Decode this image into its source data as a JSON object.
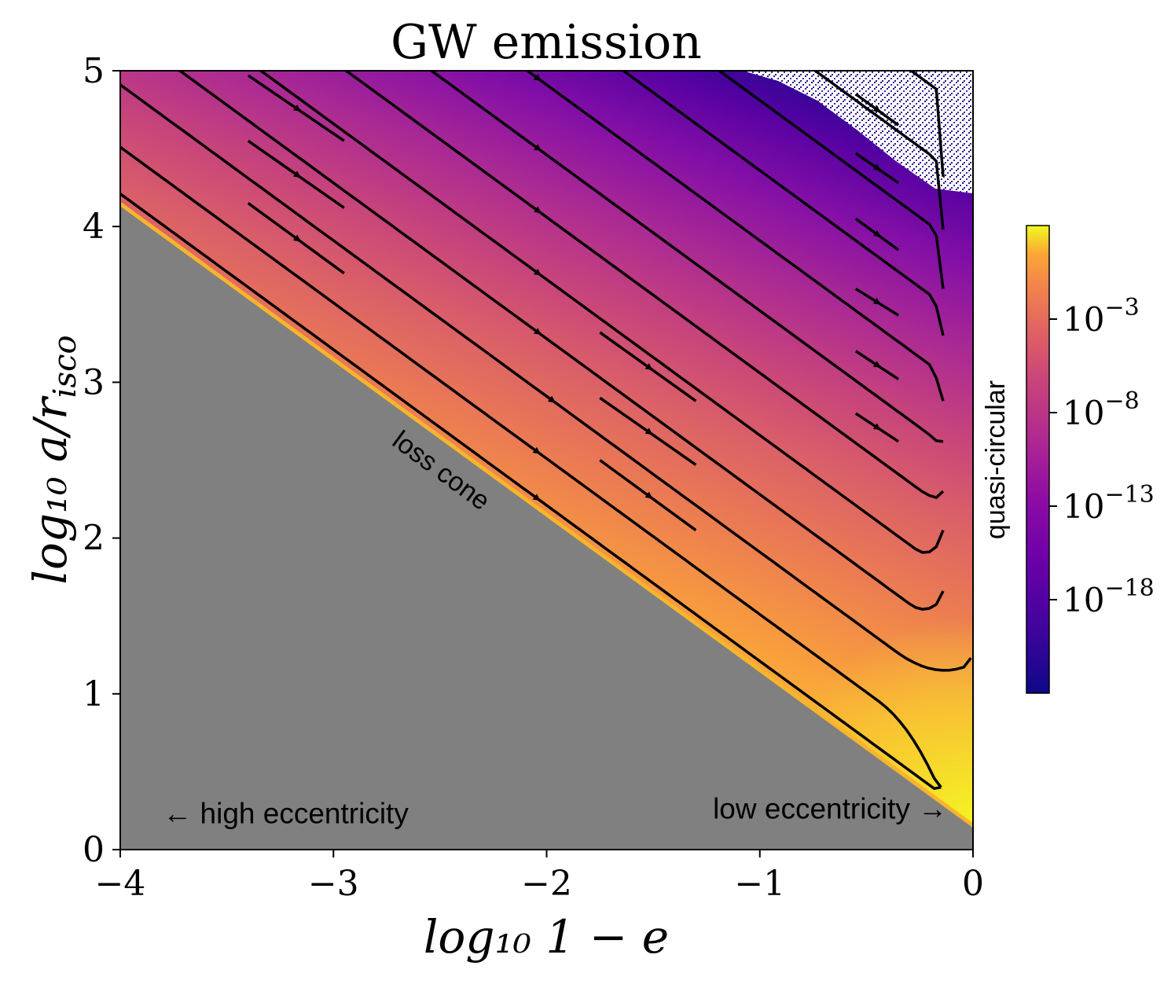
{
  "chart_data": {
    "type": "heatmap",
    "title": "GW emission",
    "xlabel": "log₁₀ 1 − e",
    "ylabel": "log₁₀ a/r",
    "ylabel_sub": "isco",
    "xlim": [
      -4,
      0
    ],
    "ylim": [
      0,
      5
    ],
    "xticks": [
      {
        "value": -4,
        "label": "−4"
      },
      {
        "value": -3,
        "label": "−3"
      },
      {
        "value": -2,
        "label": "−2"
      },
      {
        "value": -1,
        "label": "−1"
      },
      {
        "value": 0,
        "label": "0"
      }
    ],
    "yticks": [
      {
        "value": 0,
        "label": "0"
      },
      {
        "value": 1,
        "label": "1"
      },
      {
        "value": 2,
        "label": "2"
      },
      {
        "value": 3,
        "label": "3"
      },
      {
        "value": 4,
        "label": "4"
      },
      {
        "value": 5,
        "label": "5"
      }
    ],
    "colorbar": {
      "label": "quasi-circular",
      "scale": "log",
      "colormap": "plasma",
      "range_exp": [
        -23,
        2
      ],
      "ticks": [
        {
          "exp": -3,
          "label": "10",
          "sup": "−3"
        },
        {
          "exp": -8,
          "label": "10",
          "sup": "−8"
        },
        {
          "exp": -13,
          "label": "10",
          "sup": "−13"
        },
        {
          "exp": -18,
          "label": "10",
          "sup": "−18"
        }
      ]
    },
    "loss_cone": {
      "label": "loss cone",
      "boundary": [
        [
          -4,
          4.13
        ],
        [
          0,
          0.14
        ]
      ],
      "color": "#808080"
    },
    "annotations": [
      {
        "text": "← high eccentricity",
        "x": -3.8,
        "y": 0.17
      },
      {
        "text": "low eccentricity →",
        "x": -1.22,
        "y": 0.2
      }
    ],
    "flow_lines": [
      {
        "y0": 4.25,
        "x_turn": -0.6,
        "end_y": 0.4
      },
      {
        "y0": 4.55,
        "x_turn": -0.45,
        "end_y": 0.4
      },
      {
        "y0": 4.95,
        "x_turn": -0.37,
        "end_y": 1.23
      },
      {
        "y0": 5.32,
        "x_turn": -0.3,
        "end_y": 1.66
      },
      {
        "y0": 5.7,
        "x_turn": -0.27,
        "end_y": 2.05
      },
      {
        "y0": 6.1,
        "x_turn": -0.25,
        "end_y": 2.3
      },
      {
        "y0": 6.5,
        "x_turn": -0.23,
        "end_y": 2.62
      },
      {
        "y0": 6.95,
        "x_turn": -0.21,
        "end_y": 2.88
      },
      {
        "y0": 7.4,
        "x_turn": -0.2,
        "end_y": 3.3
      },
      {
        "y0": 7.85,
        "x_turn": -0.19,
        "end_y": 3.6
      },
      {
        "y0": 8.3,
        "x_turn": -0.18,
        "end_y": 3.98
      },
      {
        "y0": 8.75,
        "x_turn": -0.17,
        "end_y": 4.32
      }
    ],
    "short_segments": [
      {
        "x1": -3.4,
        "y1": 4.97,
        "x2": -2.95,
        "y2": 4.55
      },
      {
        "x1": -3.4,
        "y1": 4.55,
        "x2": -2.95,
        "y2": 4.12
      },
      {
        "x1": -3.4,
        "y1": 4.15,
        "x2": -2.95,
        "y2": 3.7
      },
      {
        "x1": -1.75,
        "y1": 3.32,
        "x2": -1.3,
        "y2": 2.88
      },
      {
        "x1": -1.75,
        "y1": 2.9,
        "x2": -1.3,
        "y2": 2.47
      },
      {
        "x1": -1.75,
        "y1": 2.5,
        "x2": -1.3,
        "y2": 2.05
      },
      {
        "x1": -0.55,
        "y1": 3.6,
        "x2": -0.35,
        "y2": 3.43
      },
      {
        "x1": -0.55,
        "y1": 3.2,
        "x2": -0.35,
        "y2": 3.02
      },
      {
        "x1": -0.55,
        "y1": 2.8,
        "x2": -0.35,
        "y2": 2.62
      },
      {
        "x1": -0.55,
        "y1": 4.05,
        "x2": -0.35,
        "y2": 3.85
      },
      {
        "x1": -0.55,
        "y1": 4.47,
        "x2": -0.35,
        "y2": 4.28
      },
      {
        "x1": -0.55,
        "y1": 4.85,
        "x2": -0.35,
        "y2": 4.65
      }
    ]
  }
}
